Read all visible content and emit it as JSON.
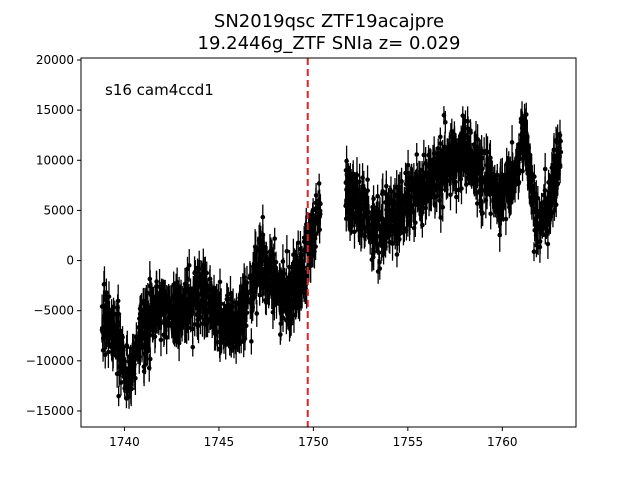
{
  "chart_data": {
    "type": "scatter",
    "title_lines": [
      "SN2019qsc  ZTF19acajpre",
      "19.2446g_ZTF SNIa z= 0.029"
    ],
    "xlabel": "",
    "ylabel": "",
    "xlim": [
      1737.7,
      1763.9
    ],
    "ylim": [
      -16600,
      20200
    ],
    "x_ticks": [
      1740,
      1745,
      1750,
      1755,
      1760
    ],
    "x_tick_labels": [
      "1740",
      "1745",
      "1750",
      "1755",
      "1760"
    ],
    "y_ticks": [
      -15000,
      -10000,
      -5000,
      0,
      5000,
      10000,
      15000,
      20000
    ],
    "y_tick_labels": [
      "−15000",
      "−10000",
      "−5000",
      "0",
      "5000",
      "10000",
      "15000",
      "20000"
    ],
    "annotation": "s16 cam4ccd1",
    "vline": {
      "x": 1749.7,
      "color": "#d62728",
      "style": "dashed"
    },
    "point_color": "#000000",
    "grid": false,
    "legend": "none",
    "series_trend": [
      {
        "x": 1738.8,
        "y": -6000
      },
      {
        "x": 1739.3,
        "y": -6500
      },
      {
        "x": 1739.8,
        "y": -9000
      },
      {
        "x": 1740.2,
        "y": -12000
      },
      {
        "x": 1740.6,
        "y": -8000
      },
      {
        "x": 1741.2,
        "y": -6500
      },
      {
        "x": 1742.0,
        "y": -4500
      },
      {
        "x": 1742.8,
        "y": -5500
      },
      {
        "x": 1743.5,
        "y": -4000
      },
      {
        "x": 1744.3,
        "y": -3500
      },
      {
        "x": 1745.0,
        "y": -6000
      },
      {
        "x": 1745.8,
        "y": -6500
      },
      {
        "x": 1746.6,
        "y": -4000
      },
      {
        "x": 1747.2,
        "y": 0
      },
      {
        "x": 1747.8,
        "y": -1000
      },
      {
        "x": 1748.4,
        "y": -4000
      },
      {
        "x": 1749.0,
        "y": -3000
      },
      {
        "x": 1749.6,
        "y": 0
      },
      {
        "x": 1750.0,
        "y": 3000
      },
      {
        "x": 1750.3,
        "y": 6000
      },
      {
        "x": 1751.8,
        "y": 6500
      },
      {
        "x": 1752.5,
        "y": 5500
      },
      {
        "x": 1753.2,
        "y": 3000
      },
      {
        "x": 1754.0,
        "y": 4000
      },
      {
        "x": 1755.0,
        "y": 5500
      },
      {
        "x": 1756.0,
        "y": 8000
      },
      {
        "x": 1757.0,
        "y": 9500
      },
      {
        "x": 1758.0,
        "y": 11000
      },
      {
        "x": 1759.0,
        "y": 8500
      },
      {
        "x": 1759.8,
        "y": 6000
      },
      {
        "x": 1760.6,
        "y": 8000
      },
      {
        "x": 1761.2,
        "y": 13000
      },
      {
        "x": 1761.8,
        "y": 3500
      },
      {
        "x": 1762.4,
        "y": 5000
      },
      {
        "x": 1763.1,
        "y": 11000
      }
    ]
  }
}
